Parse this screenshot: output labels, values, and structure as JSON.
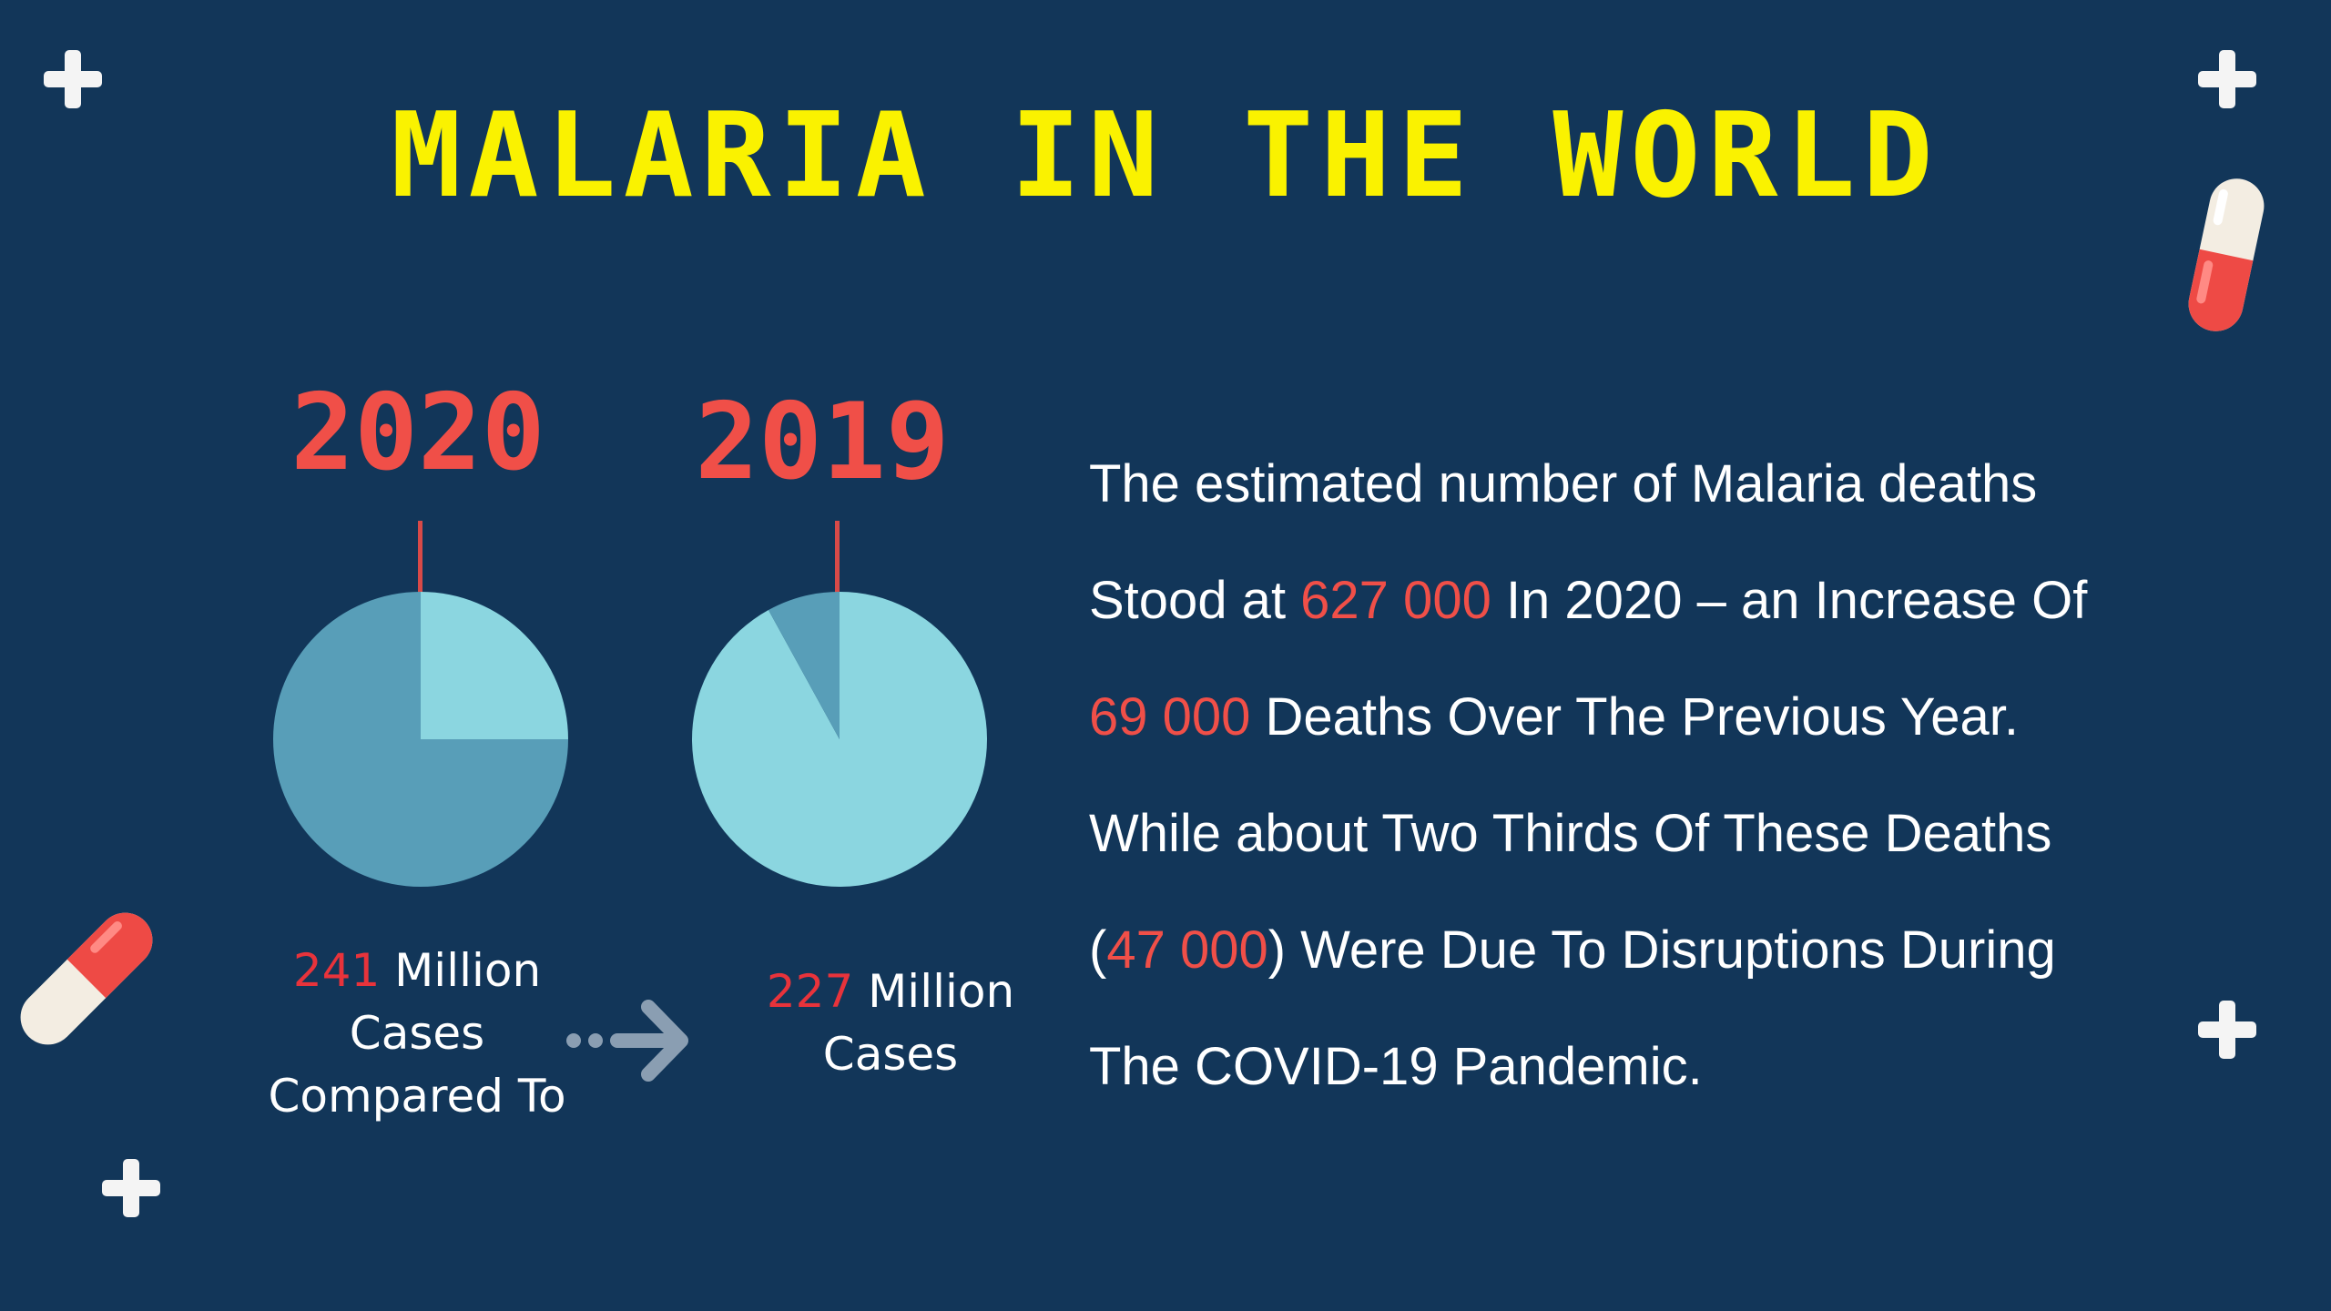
{
  "title": "MALARIA IN THE WORLD",
  "colors": {
    "background": "#123659",
    "title": "#FAF200",
    "year": "#F04F48",
    "highlight": "#E8333B",
    "pie_light": "#8BD6E0",
    "pie_dark": "#589EB8",
    "text": "#FFFFFF"
  },
  "chart_data": [
    {
      "type": "pie",
      "title": "2020",
      "slices": [
        {
          "value": 0.25,
          "color": "#8BD6E0"
        },
        {
          "value": 0.75,
          "color": "#589EB8"
        }
      ],
      "caption": {
        "number": "241",
        "line1": "Million",
        "line2": "Cases",
        "line3": "Compared To"
      }
    },
    {
      "type": "pie",
      "title": "2019",
      "slices": [
        {
          "value": 0.92,
          "color": "#8BD6E0"
        },
        {
          "value": 0.08,
          "color": "#589EB8"
        }
      ],
      "caption": {
        "number": "227",
        "line1": "Million",
        "line2": "Cases"
      }
    }
  ],
  "paragraph": {
    "line1": "The estimated number of Malaria deaths",
    "line2_pre": "Stood at ",
    "line2_hl": "627 000",
    "line2_post": " In 2020 – an Increase Of",
    "line3_hl": "69 000",
    "line3_post": " Deaths Over The Previous Year.",
    "line4": "While about Two Thirds Of These Deaths",
    "line5_pre": " (",
    "line5_hl": "47 000",
    "line5_post": ") Were Due To Disruptions During",
    "line6": "The COVID-19 Pandemic."
  },
  "icons": {
    "cross": "cross-icon",
    "pill": "pill-icon",
    "arrow": "arrow-right-icon"
  }
}
